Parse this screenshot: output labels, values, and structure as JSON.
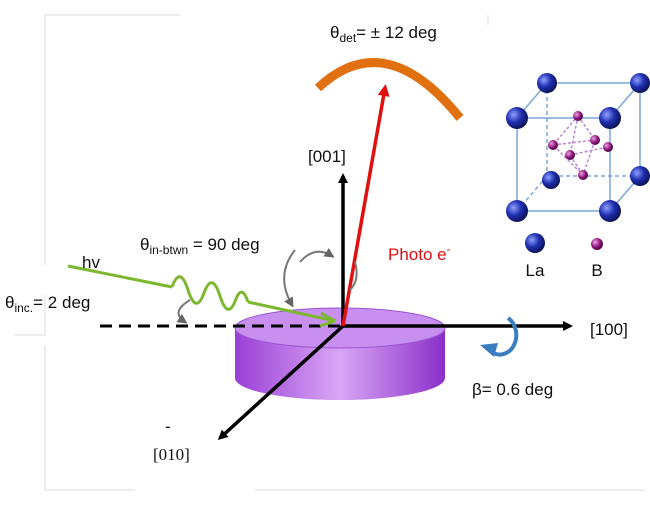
{
  "labels": {
    "theta_det": {
      "symbol": "θ",
      "sub": "det",
      "text": "= ± 12 deg"
    },
    "axis_001": "[001]",
    "photo": {
      "text": "Photo e",
      "sup": "-"
    },
    "theta_btwn": {
      "symbol": "θ",
      "sub": "in-btwn",
      "text": " = 90 deg"
    },
    "hv": "hv",
    "theta_inc": {
      "symbol": "θ",
      "sub": "inc.",
      "text": "= 2 deg"
    },
    "axis_100": "[100]",
    "beta": "β= 0.6 deg",
    "axis_010": {
      "bar": "-",
      "text": "[010]"
    },
    "legend": {
      "la": "La",
      "b": "B"
    }
  }
}
